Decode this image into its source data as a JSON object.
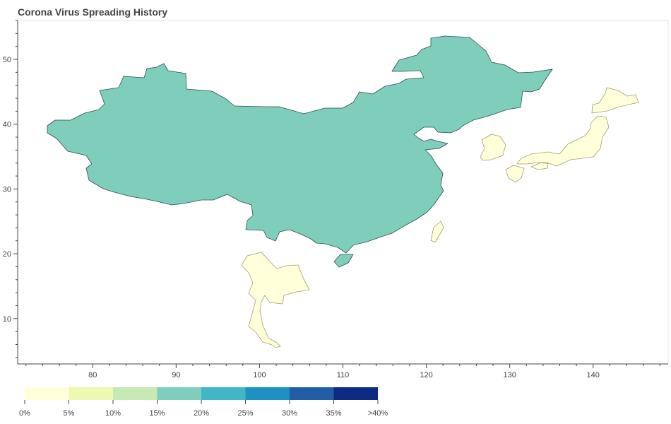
{
  "chart_data": {
    "type": "choropleth",
    "title": "Corona Virus Spreading History",
    "x_axis": {
      "ticks": [
        80,
        90,
        100,
        110,
        120,
        130,
        140
      ],
      "range": [
        71,
        149
      ]
    },
    "y_axis": {
      "ticks": [
        10,
        20,
        30,
        40,
        50
      ],
      "range": [
        3,
        56
      ]
    },
    "regions": [
      {
        "name": "China",
        "bin": "15%-20%"
      },
      {
        "name": "Taiwan",
        "bin": "0%-5%"
      },
      {
        "name": "South Korea",
        "bin": "0%-5%"
      },
      {
        "name": "Japan",
        "bin": "0%-5%"
      },
      {
        "name": "Thailand",
        "bin": "0%-5%"
      }
    ],
    "legend": {
      "placement": "bottom-left",
      "labels": [
        "0%",
        "5%",
        "10%",
        "15%",
        "20%",
        "25%",
        "30%",
        "35%",
        ">40%"
      ],
      "colors": [
        "#ffffd9",
        "#edf8b1",
        "#c7e9b4",
        "#7fcdbb",
        "#41b6c4",
        "#1d91c0",
        "#225ea8",
        "#0c2c84"
      ]
    },
    "grid": false
  },
  "colors": {
    "axis": "#444444",
    "frame": "#e5e5e5",
    "region_border": "#2f4f4f",
    "light_border": "#a0a070"
  }
}
